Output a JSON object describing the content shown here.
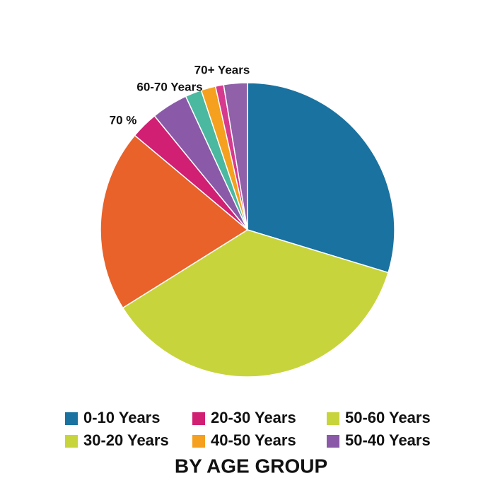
{
  "chart_data": {
    "type": "pie",
    "title": "BY AGE GROUP",
    "values": [
      29.7,
      36.4,
      20,
      3,
      4,
      1.8,
      1.6,
      0.9,
      2.6
    ],
    "colors": [
      "#1a72a0",
      "#c8d43c",
      "#e8622a",
      "#d11f74",
      "#8a5aa8",
      "#4bb8a0",
      "#f5a01e",
      "#d63a8f",
      "#9060a8"
    ],
    "annotations": [
      "70 %",
      "60-70 Years",
      "70+ Years"
    ],
    "legend": [
      {
        "name": "0-10 Years",
        "color": "#1a72a0"
      },
      {
        "name": "20-30 Years",
        "color": "#d11f74"
      },
      {
        "name": "50-60 Years",
        "color": "#c8d43c"
      },
      {
        "name": "30-20 Years",
        "color": "#c8d43c"
      },
      {
        "name": "40-50 Years",
        "color": "#f5a01e"
      },
      {
        "name": "50-40 Years",
        "color": "#8a5aa8"
      }
    ]
  }
}
